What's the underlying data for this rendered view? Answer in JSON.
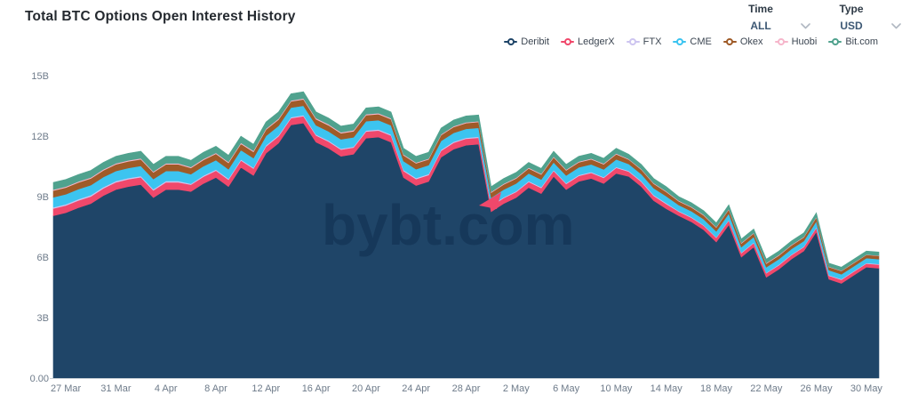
{
  "header": {
    "title": "Total BTC Options Open Interest History"
  },
  "controls": {
    "time": {
      "label": "Time",
      "value": "ALL"
    },
    "type": {
      "label": "Type",
      "value": "USD"
    }
  },
  "watermark": {
    "text": "bybt.com",
    "accent_color": "#f0486b"
  },
  "chart_data": {
    "type": "area",
    "stacked": true,
    "title": "Total BTC Options Open Interest History",
    "unit": "USD (billions)",
    "grid": false,
    "legend_position": "top-right",
    "ylim": [
      0,
      15
    ],
    "y_ticks": [
      {
        "v": 0,
        "label": "0.00"
      },
      {
        "v": 3,
        "label": "3B"
      },
      {
        "v": 6,
        "label": "6B"
      },
      {
        "v": 9,
        "label": "9B"
      },
      {
        "v": 12,
        "label": "12B"
      },
      {
        "v": 15,
        "label": "15B"
      }
    ],
    "n_points": 67,
    "x_ticks": [
      {
        "d": 1,
        "label": "27 Mar"
      },
      {
        "d": 5,
        "label": "31 Mar"
      },
      {
        "d": 9,
        "label": "4 Apr"
      },
      {
        "d": 13,
        "label": "8 Apr"
      },
      {
        "d": 17,
        "label": "12 Apr"
      },
      {
        "d": 21,
        "label": "16 Apr"
      },
      {
        "d": 25,
        "label": "20 Apr"
      },
      {
        "d": 29,
        "label": "24 Apr"
      },
      {
        "d": 33,
        "label": "28 Apr"
      },
      {
        "d": 37,
        "label": "2 May"
      },
      {
        "d": 41,
        "label": "6 May"
      },
      {
        "d": 45,
        "label": "10 May"
      },
      {
        "d": 49,
        "label": "14 May"
      },
      {
        "d": 53,
        "label": "18 May"
      },
      {
        "d": 57,
        "label": "22 May"
      },
      {
        "d": 61,
        "label": "26 May"
      },
      {
        "d": 65,
        "label": "30 May"
      }
    ],
    "series": [
      {
        "name": "Deribit",
        "color": "#1f4568",
        "values": [
          8.05,
          8.2,
          8.45,
          8.65,
          9.05,
          9.35,
          9.5,
          9.6,
          8.95,
          9.35,
          9.35,
          9.25,
          9.65,
          9.95,
          9.5,
          10.45,
          10.05,
          11.15,
          11.65,
          12.55,
          12.65,
          11.7,
          11.4,
          11.0,
          11.1,
          11.9,
          11.95,
          11.7,
          9.95,
          9.55,
          9.75,
          10.95,
          11.35,
          11.55,
          11.6,
          8.25,
          8.65,
          8.95,
          9.45,
          9.15,
          10.0,
          9.35,
          9.75,
          9.9,
          9.65,
          10.15,
          10.0,
          9.5,
          8.8,
          8.4,
          8.05,
          7.75,
          7.35,
          6.75,
          7.6,
          6.0,
          6.5,
          5.0,
          5.4,
          5.9,
          6.3,
          7.25,
          4.9,
          4.7,
          5.1,
          5.5,
          5.45
        ]
      },
      {
        "name": "LedgerX",
        "color": "#f0486b",
        "values": [
          0.36,
          0.36,
          0.36,
          0.36,
          0.36,
          0.36,
          0.36,
          0.36,
          0.36,
          0.36,
          0.36,
          0.34,
          0.34,
          0.34,
          0.34,
          0.34,
          0.34,
          0.34,
          0.34,
          0.34,
          0.34,
          0.33,
          0.33,
          0.33,
          0.33,
          0.33,
          0.33,
          0.33,
          0.32,
          0.32,
          0.32,
          0.32,
          0.32,
          0.32,
          0.32,
          0.28,
          0.28,
          0.28,
          0.28,
          0.28,
          0.28,
          0.28,
          0.28,
          0.28,
          0.28,
          0.28,
          0.24,
          0.24,
          0.24,
          0.24,
          0.21,
          0.21,
          0.21,
          0.21,
          0.22,
          0.2,
          0.2,
          0.2,
          0.2,
          0.2,
          0.2,
          0.21,
          0.18,
          0.18,
          0.18,
          0.18,
          0.18
        ]
      },
      {
        "name": "FTX",
        "color": "#cdc5f0",
        "values": [
          0.06,
          0.06,
          0.06,
          0.06,
          0.06,
          0.06,
          0.06,
          0.06,
          0.06,
          0.06,
          0.06,
          0.05,
          0.05,
          0.05,
          0.05,
          0.05,
          0.05,
          0.05,
          0.05,
          0.05,
          0.05,
          0.05,
          0.05,
          0.05,
          0.05,
          0.05,
          0.05,
          0.05,
          0.05,
          0.05,
          0.05,
          0.05,
          0.05,
          0.05,
          0.05,
          0.04,
          0.04,
          0.04,
          0.04,
          0.04,
          0.04,
          0.04,
          0.04,
          0.04,
          0.04,
          0.04,
          0.04,
          0.04,
          0.04,
          0.04,
          0.03,
          0.03,
          0.03,
          0.03,
          0.03,
          0.03,
          0.03,
          0.03,
          0.03,
          0.03,
          0.03,
          0.03,
          0.03,
          0.03,
          0.03,
          0.03,
          0.03
        ]
      },
      {
        "name": "CME",
        "color": "#3cc4f0",
        "values": [
          0.5,
          0.5,
          0.5,
          0.5,
          0.5,
          0.5,
          0.5,
          0.5,
          0.5,
          0.5,
          0.5,
          0.47,
          0.47,
          0.47,
          0.47,
          0.47,
          0.47,
          0.47,
          0.47,
          0.47,
          0.47,
          0.46,
          0.46,
          0.46,
          0.46,
          0.46,
          0.46,
          0.46,
          0.44,
          0.44,
          0.44,
          0.44,
          0.44,
          0.44,
          0.44,
          0.38,
          0.38,
          0.38,
          0.38,
          0.38,
          0.38,
          0.38,
          0.38,
          0.38,
          0.38,
          0.38,
          0.34,
          0.34,
          0.34,
          0.34,
          0.29,
          0.29,
          0.29,
          0.29,
          0.31,
          0.27,
          0.27,
          0.27,
          0.27,
          0.27,
          0.27,
          0.29,
          0.24,
          0.24,
          0.24,
          0.24,
          0.24
        ]
      },
      {
        "name": "Okex",
        "color": "#9f5b28",
        "values": [
          0.33,
          0.33,
          0.33,
          0.33,
          0.33,
          0.33,
          0.33,
          0.33,
          0.33,
          0.33,
          0.33,
          0.31,
          0.31,
          0.31,
          0.31,
          0.31,
          0.31,
          0.31,
          0.31,
          0.31,
          0.31,
          0.3,
          0.3,
          0.3,
          0.3,
          0.3,
          0.3,
          0.3,
          0.29,
          0.29,
          0.29,
          0.29,
          0.29,
          0.29,
          0.29,
          0.25,
          0.25,
          0.25,
          0.25,
          0.25,
          0.25,
          0.25,
          0.25,
          0.25,
          0.25,
          0.25,
          0.22,
          0.22,
          0.22,
          0.22,
          0.19,
          0.19,
          0.19,
          0.19,
          0.2,
          0.18,
          0.18,
          0.18,
          0.18,
          0.18,
          0.18,
          0.19,
          0.16,
          0.16,
          0.16,
          0.16,
          0.16
        ]
      },
      {
        "name": "Huobi",
        "color": "#f6b6cb",
        "values": [
          0.05,
          0.05,
          0.05,
          0.05,
          0.05,
          0.05,
          0.05,
          0.05,
          0.05,
          0.05,
          0.05,
          0.05,
          0.05,
          0.05,
          0.05,
          0.05,
          0.05,
          0.05,
          0.05,
          0.05,
          0.05,
          0.05,
          0.05,
          0.05,
          0.05,
          0.05,
          0.05,
          0.05,
          0.04,
          0.04,
          0.04,
          0.04,
          0.04,
          0.04,
          0.04,
          0.04,
          0.04,
          0.04,
          0.04,
          0.04,
          0.04,
          0.04,
          0.04,
          0.04,
          0.04,
          0.04,
          0.03,
          0.03,
          0.03,
          0.03,
          0.03,
          0.03,
          0.03,
          0.03,
          0.03,
          0.03,
          0.03,
          0.03,
          0.03,
          0.03,
          0.03,
          0.03,
          0.02,
          0.02,
          0.02,
          0.02,
          0.02
        ]
      },
      {
        "name": "Bit.com",
        "color": "#50a28e",
        "values": [
          0.35,
          0.35,
          0.35,
          0.35,
          0.35,
          0.35,
          0.35,
          0.35,
          0.35,
          0.35,
          0.35,
          0.33,
          0.33,
          0.33,
          0.33,
          0.33,
          0.33,
          0.33,
          0.33,
          0.33,
          0.33,
          0.31,
          0.31,
          0.31,
          0.31,
          0.31,
          0.31,
          0.31,
          0.31,
          0.31,
          0.31,
          0.31,
          0.31,
          0.31,
          0.31,
          0.26,
          0.26,
          0.26,
          0.26,
          0.26,
          0.26,
          0.26,
          0.26,
          0.26,
          0.26,
          0.26,
          0.23,
          0.23,
          0.23,
          0.23,
          0.2,
          0.2,
          0.2,
          0.2,
          0.21,
          0.19,
          0.19,
          0.19,
          0.19,
          0.19,
          0.19,
          0.2,
          0.17,
          0.17,
          0.17,
          0.17,
          0.17
        ]
      }
    ]
  }
}
